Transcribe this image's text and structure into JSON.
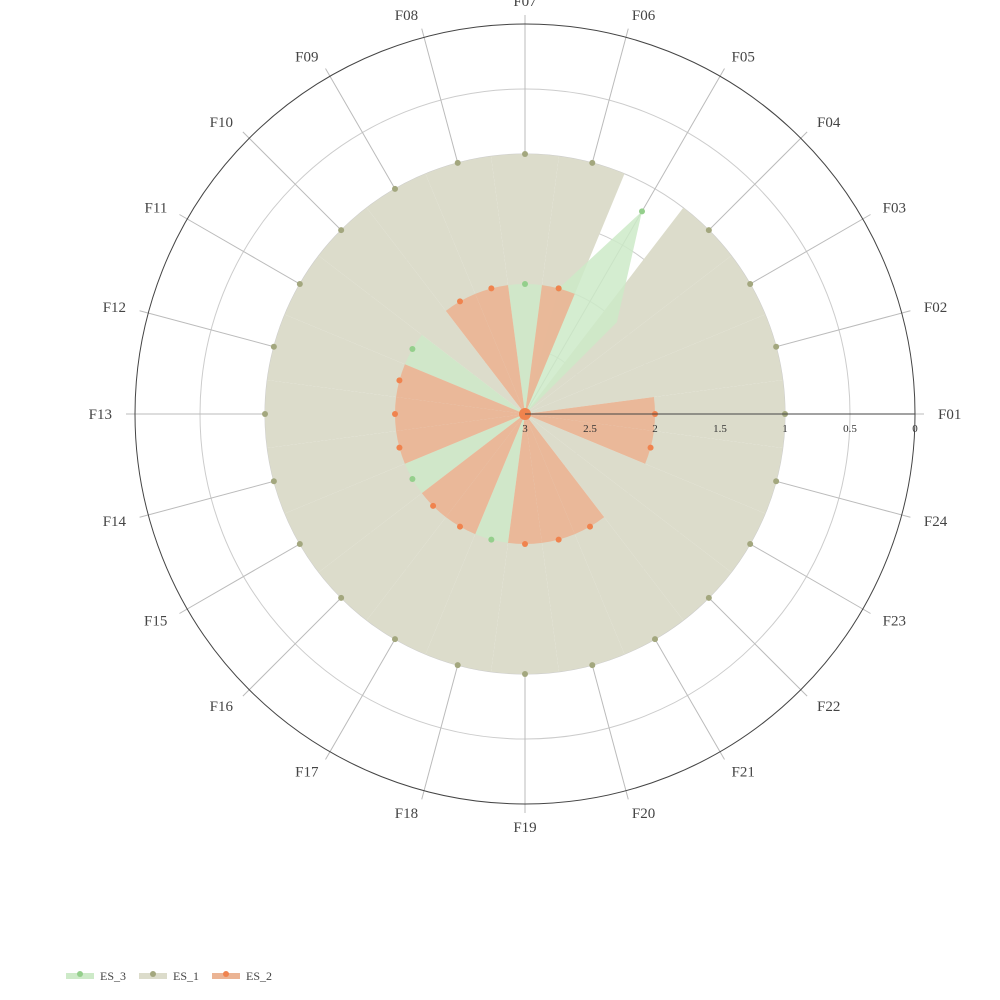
{
  "chart_data": {
    "type": "radar",
    "title": "",
    "categories": [
      "F01",
      "F02",
      "F03",
      "F04",
      "F05",
      "F06",
      "F07",
      "F08",
      "F09",
      "F10",
      "F11",
      "F12",
      "F13",
      "F14",
      "F15",
      "F16",
      "F17",
      "F18",
      "F19",
      "F20",
      "F21",
      "F22",
      "F23",
      "F24"
    ],
    "radial_axis": {
      "range": [
        3,
        0
      ],
      "reversed": true,
      "ticks": [
        3,
        2.5,
        2,
        1.5,
        1,
        0.5,
        0
      ],
      "tick_labels": [
        "3",
        "2.5",
        "2",
        "1.5",
        "1",
        "0.5",
        "0"
      ],
      "grid": true
    },
    "legend": {
      "position": "bottom-left"
    },
    "series": [
      {
        "name": "ES_1",
        "color": "#a3a77e",
        "fill": "#dcdccb",
        "values": [
          1,
          1,
          1,
          1,
          3,
          1,
          1,
          1,
          1,
          1,
          1,
          1,
          1,
          1,
          1,
          1,
          1,
          1,
          1,
          1,
          1,
          1,
          1,
          1
        ],
        "highlight_values": [
          2,
          2,
          3,
          2,
          3,
          3,
          3,
          3,
          3,
          3,
          3,
          3,
          3,
          3,
          3,
          3,
          3,
          3,
          3,
          3,
          3,
          3,
          3,
          3
        ]
      },
      {
        "name": "ES_3",
        "color": "#94cf8c",
        "fill": "#cdeac8",
        "values": [
          3,
          3,
          3,
          3,
          1.2,
          2,
          2,
          3,
          3,
          3,
          2,
          3,
          3,
          3,
          2,
          3,
          3,
          2,
          3,
          3,
          3,
          3,
          3,
          3
        ]
      },
      {
        "name": "ES_2",
        "color": "#f0834e",
        "fill": "#ebb494",
        "values": [
          2,
          3,
          3,
          3,
          3,
          2,
          3,
          2,
          2,
          3,
          3,
          2,
          2,
          2,
          3,
          2,
          2,
          3,
          2,
          2,
          2,
          3,
          3,
          2
        ]
      }
    ]
  },
  "legend": {
    "items": [
      {
        "name": "ES_3",
        "color": "#94cf8c",
        "fill": "#cdeac8"
      },
      {
        "name": "ES_1",
        "color": "#a3a77e",
        "fill": "#dcdccb"
      },
      {
        "name": "ES_2",
        "color": "#f0834e",
        "fill": "#ebb494"
      }
    ]
  }
}
